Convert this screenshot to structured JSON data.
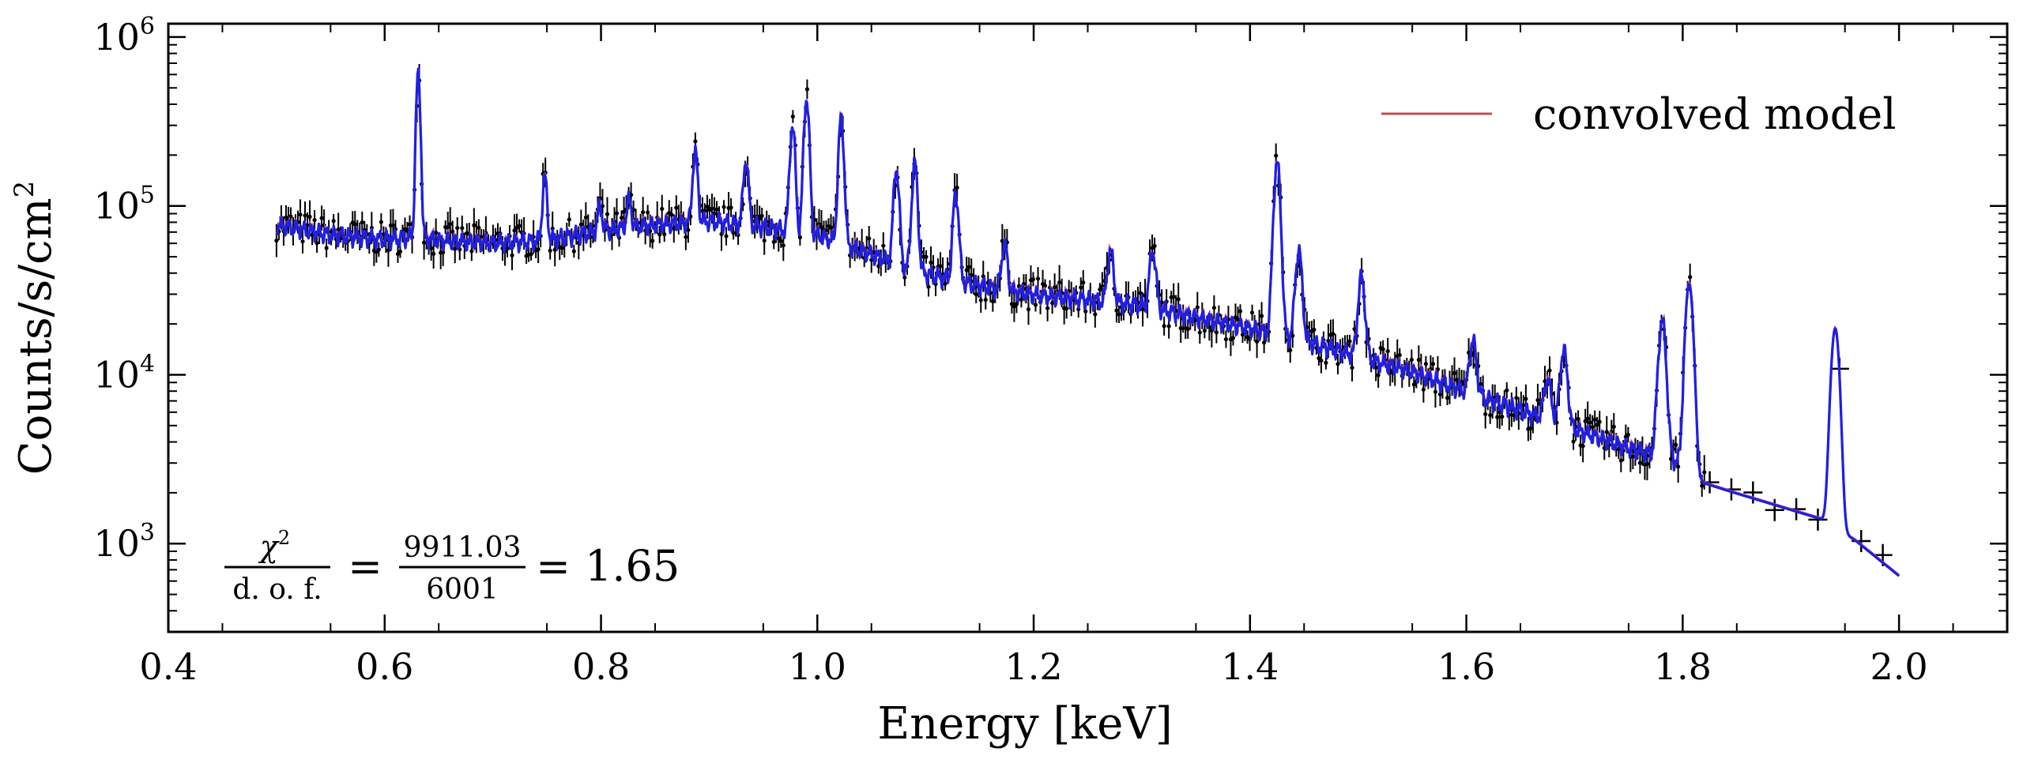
{
  "chart_data": {
    "type": "line",
    "xlabel": "Energy [keV]",
    "ylabel": "Counts/s/cm",
    "ylabel_sup": "2",
    "xlim": [
      0.4,
      2.1
    ],
    "ylim": [
      300,
      1200000
    ],
    "yscale": "log",
    "x_ticks": [
      0.4,
      0.6,
      0.8,
      1.0,
      1.2,
      1.4,
      1.6,
      1.8,
      2.0
    ],
    "x_tick_labels": [
      "0.4",
      "0.6",
      "0.8",
      "1.0",
      "1.2",
      "1.4",
      "1.6",
      "1.8",
      "2.0"
    ],
    "y_ticks": [
      1000,
      10000,
      100000,
      1000000
    ],
    "y_tick_base": "10",
    "y_tick_exponents": [
      "3",
      "4",
      "5",
      "6"
    ],
    "grid": false,
    "legend": {
      "placement": "top-right",
      "entries": [
        {
          "label": "convolved model",
          "color": "#c0504d"
        }
      ]
    },
    "annotation": {
      "lhs_num": "χ",
      "lhs_num_sup": "2",
      "lhs_den": "d. o. f.",
      "eq1": "=",
      "rhs_num": "9911.03",
      "rhs_den": "6001",
      "eq2": "=",
      "result": "1.65"
    },
    "series": [
      {
        "name": "convolved model",
        "color": "#c0504d",
        "continuum": [
          [
            0.5,
            78000
          ],
          [
            0.55,
            68000
          ],
          [
            0.6,
            64000
          ],
          [
            0.63,
            66000
          ],
          [
            0.65,
            63000
          ],
          [
            0.7,
            61000
          ],
          [
            0.75,
            63000
          ],
          [
            0.8,
            72000
          ],
          [
            0.85,
            78000
          ],
          [
            0.9,
            82000
          ],
          [
            0.95,
            76000
          ],
          [
            1.0,
            68000
          ],
          [
            1.05,
            52000
          ],
          [
            1.1,
            40000
          ],
          [
            1.15,
            34000
          ],
          [
            1.2,
            30000
          ],
          [
            1.25,
            28000
          ],
          [
            1.3,
            26000
          ],
          [
            1.35,
            22000
          ],
          [
            1.4,
            19000
          ],
          [
            1.45,
            16000
          ],
          [
            1.5,
            13000
          ],
          [
            1.55,
            10500
          ],
          [
            1.6,
            8000
          ],
          [
            1.65,
            6200
          ],
          [
            1.7,
            4800
          ],
          [
            1.75,
            3700
          ],
          [
            1.79,
            3200
          ],
          [
            1.82,
            2300
          ],
          [
            1.85,
            2000
          ],
          [
            1.9,
            1600
          ],
          [
            1.93,
            1400
          ],
          [
            1.96,
            1050
          ],
          [
            2.0,
            650
          ]
        ],
        "lines": [
          [
            0.631,
            600000
          ],
          [
            0.748,
            150000
          ],
          [
            0.799,
            100000
          ],
          [
            0.826,
            110000
          ],
          [
            0.887,
            210000
          ],
          [
            0.934,
            190000
          ],
          [
            0.977,
            300000
          ],
          [
            0.99,
            440000
          ],
          [
            1.022,
            330000
          ],
          [
            1.073,
            170000
          ],
          [
            1.09,
            180000
          ],
          [
            1.128,
            120000
          ],
          [
            1.173,
            60000
          ],
          [
            1.271,
            55000
          ],
          [
            1.31,
            55000
          ],
          [
            1.425,
            180000
          ],
          [
            1.445,
            55000
          ],
          [
            1.503,
            38000
          ],
          [
            1.606,
            16000
          ],
          [
            1.675,
            9500
          ],
          [
            1.69,
            14000
          ],
          [
            1.781,
            21000
          ],
          [
            1.806,
            35000
          ],
          [
            1.941,
            19000
          ]
        ]
      },
      {
        "name": "",
        "color": "#1f1fe6",
        "continuum_ref": "same",
        "lines_ref": "same"
      }
    ],
    "data_style": {
      "color": "#000000",
      "marker": "errorbar"
    }
  }
}
